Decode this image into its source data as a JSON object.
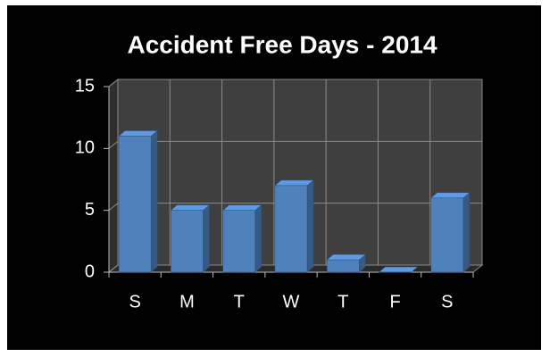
{
  "chart_data": {
    "type": "bar",
    "title": "Accident Free Days - 2014",
    "categories": [
      "S",
      "M",
      "T",
      "W",
      "T",
      "F",
      "S"
    ],
    "values": [
      11,
      5,
      5,
      7,
      1,
      0,
      6
    ],
    "color": "#4f81bd",
    "ylim": [
      0,
      15
    ],
    "yticks": [
      0,
      5,
      10,
      15
    ],
    "grid": true
  }
}
